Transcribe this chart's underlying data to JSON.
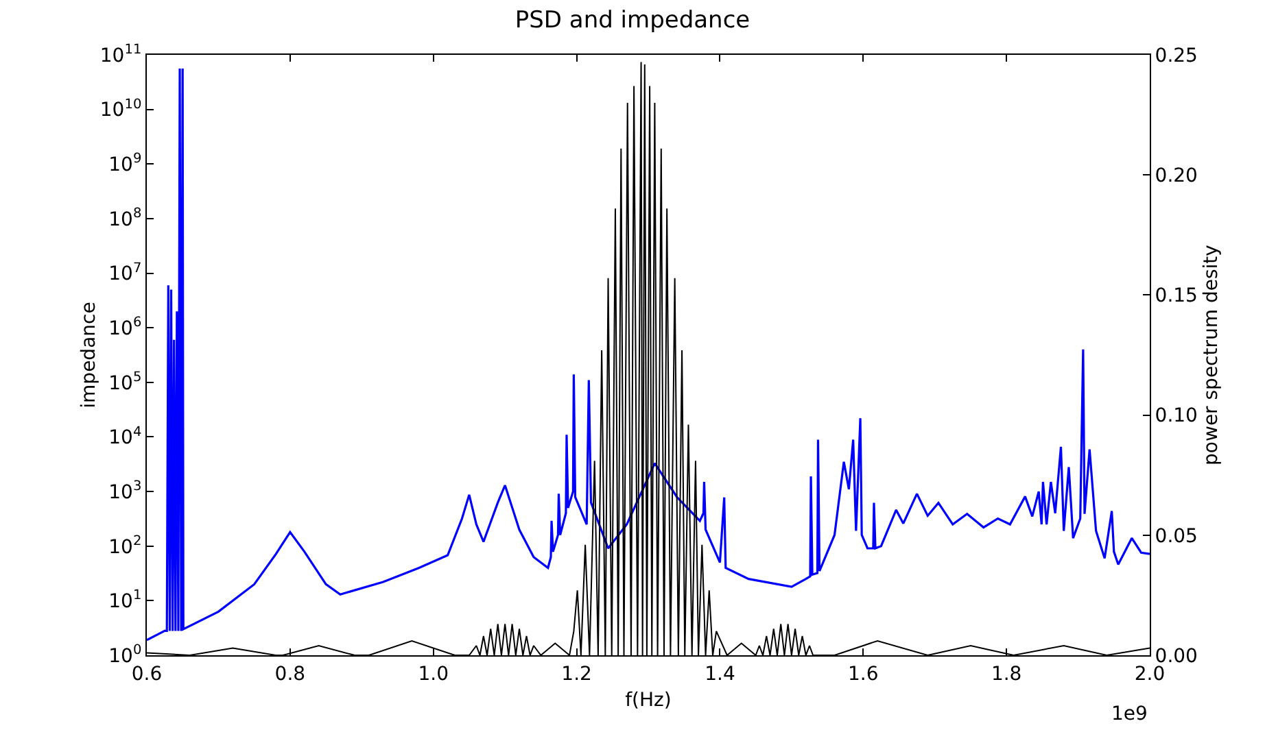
{
  "chart_data": {
    "type": "line",
    "title": "PSD and impedance",
    "xlabel": "f(Hz)",
    "ylabel": "impedance",
    "y2label": "power spectrum desity",
    "annotations": [
      "1e9"
    ],
    "xlim": [
      0.6,
      2.0
    ],
    "xticks": [
      0.6,
      {
        "value": 0.8,
        "label": "0.8"
      },
      {
        "value": 1.0,
        "label": "1.0"
      },
      1.2,
      1.4,
      1.6,
      1.8,
      {
        "value": 2.0,
        "label": "2.0"
      }
    ],
    "ylim": [
      1,
      100000000000
    ],
    "log": "y",
    "yticks": [
      {
        "value": 1,
        "label": "10$^{0}$"
      },
      {
        "value": 10,
        "label": "10$^{1}$"
      },
      {
        "value": 100,
        "label": "10$^{2}$"
      },
      {
        "value": 1000,
        "label": "10$^{3}$"
      },
      {
        "value": 10000,
        "label": "10$^{4}$"
      },
      {
        "value": 100000,
        "label": "10$^{5}$"
      },
      {
        "value": 1000000,
        "label": "10$^{6}$"
      },
      {
        "value": 10000000,
        "label": "10$^{7}$"
      },
      {
        "value": 100000000,
        "label": "10$^{8}$"
      },
      {
        "value": 1000000000,
        "label": "10$^{9}$"
      },
      {
        "value": 10000000000,
        "label": "10$^{10}$"
      },
      {
        "value": 100000000000,
        "label": "10$^{11}$"
      }
    ],
    "y2lim": [
      0,
      0.25
    ],
    "y2ticks": [
      {
        "value": 0,
        "label": "0.00"
      },
      {
        "value": 0.05,
        "label": "0.05"
      },
      {
        "value": 0.1,
        "label": "0.10"
      },
      {
        "value": 0.15,
        "label": "0.15"
      },
      {
        "value": 0.2,
        "label": "0.20"
      },
      {
        "value": 0.25,
        "label": "0.25"
      }
    ],
    "grid": false,
    "marker": "none",
    "line_style": "solid",
    "series": [
      {
        "color": "#0000ff",
        "x": [
          0.6,
          0.625,
          0.628,
          0.63,
          0.632,
          0.634,
          0.636,
          0.638,
          0.64,
          0.642,
          0.644,
          0.646,
          0.648,
          0.65,
          0.651,
          0.7,
          0.75,
          0.78,
          0.8,
          0.82,
          0.85,
          0.87,
          0.93,
          0.98,
          1.02,
          1.04,
          1.05,
          1.06,
          1.07,
          1.09,
          1.1,
          1.12,
          1.14,
          1.16,
          1.164,
          1.165,
          1.167,
          1.174,
          1.175,
          1.177,
          1.185,
          1.186,
          1.188,
          1.195,
          1.196,
          1.198,
          1.214,
          1.217,
          1.22,
          1.244,
          1.27,
          1.309,
          1.34,
          1.372,
          1.377,
          1.378,
          1.38,
          1.4,
          1.406,
          1.408,
          1.44,
          1.5,
          1.52,
          1.526,
          1.527,
          1.529,
          1.536,
          1.537,
          1.539,
          1.56,
          1.573,
          1.58,
          1.586,
          1.59,
          1.596,
          1.598,
          1.606,
          1.614,
          1.615,
          1.617,
          1.625,
          1.646,
          1.656,
          1.675,
          1.69,
          1.705,
          1.725,
          1.745,
          1.768,
          1.788,
          1.805,
          1.826,
          1.836,
          1.845,
          1.849,
          1.851,
          1.856,
          1.862,
          1.868,
          1.876,
          1.88,
          1.887,
          1.893,
          1.903,
          1.907,
          1.909,
          1.916,
          1.925,
          1.937,
          1.947,
          1.95,
          1.956,
          1.975,
          1.988,
          2.0
        ],
        "values": [
          1.9,
          2.8,
          2.8,
          6000000,
          2.8,
          5000000,
          2.8,
          600000,
          2.8,
          2000000,
          2.8,
          56000000000,
          2.8,
          56000000000,
          3.0,
          6.3,
          20,
          71,
          180,
          79,
          20,
          13,
          22,
          40,
          68,
          320,
          870,
          250,
          120,
          630,
          1300,
          200,
          63,
          40,
          63,
          290,
          79,
          160,
          910,
          160,
          400,
          11000,
          500,
          1000,
          140000,
          790,
          250,
          110000,
          630,
          91,
          250,
          3300,
          790,
          290,
          400,
          1500,
          200,
          50,
          780,
          40,
          25,
          18,
          25,
          28,
          1900,
          30,
          32,
          8900,
          35,
          160,
          3500,
          1100,
          8900,
          190,
          22000,
          160,
          91,
          91,
          620,
          91,
          100,
          460,
          260,
          910,
          360,
          620,
          250,
          390,
          220,
          320,
          250,
          810,
          350,
          1000,
          250,
          1500,
          250,
          1500,
          400,
          6600,
          190,
          2800,
          140,
          320,
          400000,
          390,
          5900,
          190,
          60,
          440,
          79,
          46,
          140,
          76,
          72
        ]
      },
      {
        "color": "#000000",
        "axis": "y2",
        "x": [
          0.6,
          0.66,
          0.72,
          0.78,
          0.79,
          0.84,
          0.89,
          0.91,
          0.97,
          1.03,
          1.05,
          1.06,
          1.065,
          1.07,
          1.075,
          1.08,
          1.085,
          1.09,
          1.095,
          1.1,
          1.105,
          1.11,
          1.115,
          1.12,
          1.125,
          1.13,
          1.135,
          1.14,
          1.15,
          1.17,
          1.19,
          1.196,
          1.201,
          1.206,
          1.212,
          1.218,
          1.225,
          1.23,
          1.235,
          1.24,
          1.244,
          1.249,
          1.254,
          1.258,
          1.262,
          1.266,
          1.271,
          1.276,
          1.28,
          1.285,
          1.29,
          1.292,
          1.295,
          1.298,
          1.302,
          1.305,
          1.309,
          1.313,
          1.318,
          1.322,
          1.326,
          1.331,
          1.337,
          1.342,
          1.347,
          1.351,
          1.356,
          1.361,
          1.366,
          1.37,
          1.375,
          1.38,
          1.385,
          1.39,
          1.395,
          1.41,
          1.43,
          1.45,
          1.455,
          1.46,
          1.465,
          1.47,
          1.475,
          1.48,
          1.485,
          1.49,
          1.495,
          1.5,
          1.505,
          1.51,
          1.515,
          1.52,
          1.525,
          1.53,
          1.56,
          1.62,
          1.69,
          1.75,
          1.81,
          1.88,
          1.94,
          2.0
        ],
        "values": [
          0.001,
          0.0,
          0.003,
          0.0,
          0.0,
          0.004,
          0.0,
          0.0,
          0.006,
          0.0,
          0.0,
          0.004,
          0.0,
          0.008,
          0.0,
          0.011,
          0.0,
          0.013,
          0.0,
          0.013,
          0.0,
          0.013,
          0.0,
          0.011,
          0.0,
          0.008,
          0.0,
          0.004,
          0.0,
          0.005,
          0.0,
          0.01,
          0.027,
          0.0,
          0.046,
          0.0,
          0.081,
          0.0,
          0.127,
          0.0,
          0.157,
          0.0,
          0.186,
          0.0,
          0.211,
          0.0,
          0.23,
          0.0,
          0.237,
          0.0,
          0.247,
          0.0,
          0.246,
          0.0,
          0.237,
          0.0,
          0.23,
          0.0,
          0.211,
          0.0,
          0.186,
          0.0,
          0.157,
          0.0,
          0.127,
          0.0,
          0.096,
          0.0,
          0.081,
          0.0,
          0.046,
          0.0,
          0.027,
          0.0,
          0.01,
          0.0,
          0.005,
          0.0,
          0.004,
          0.0,
          0.008,
          0.0,
          0.011,
          0.0,
          0.013,
          0.0,
          0.013,
          0.0,
          0.011,
          0.0,
          0.008,
          0.0,
          0.004,
          0.0,
          0.0,
          0.006,
          0.0,
          0.004,
          0.0,
          0.004,
          0.0,
          0.003
        ]
      }
    ]
  }
}
